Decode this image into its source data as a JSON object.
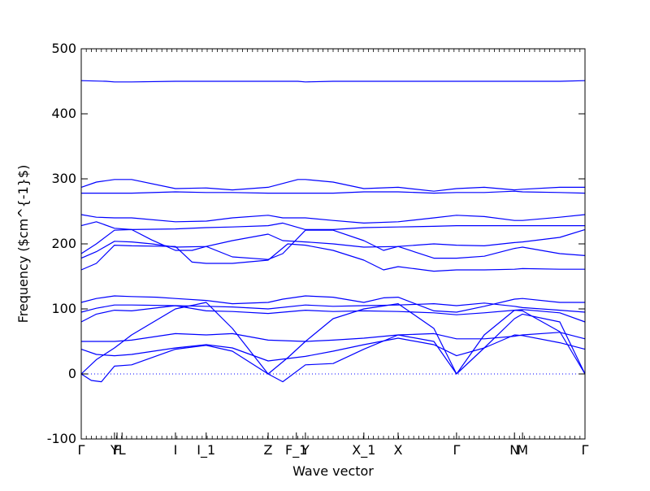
{
  "chart_data": {
    "type": "line",
    "title": "",
    "xlabel": "Wave vector",
    "ylabel": "Frequency ($cm^{-1}$)",
    "ylim": [
      -100,
      500
    ],
    "yticks": [
      -100,
      0,
      100,
      200,
      300,
      400,
      500
    ],
    "xlim": [
      0,
      1
    ],
    "grid": false,
    "legend": "none",
    "series_color": "#0000ff",
    "zero_line_color": "#0000ff",
    "high_symmetry_points": [
      {
        "label": "Γ",
        "x": 0.0
      },
      {
        "label": "Y",
        "x": 0.066
      },
      {
        "label": "F",
        "x": 0.071
      },
      {
        "label": "L",
        "x": 0.081
      },
      {
        "label": "I",
        "x": 0.187
      },
      {
        "label": "I_1",
        "x": 0.248
      },
      {
        "label": "Z",
        "x": 0.371
      },
      {
        "label": "F_1",
        "x": 0.427
      },
      {
        "label": "Y",
        "x": 0.445
      },
      {
        "label": "X_1",
        "x": 0.561
      },
      {
        "label": "X",
        "x": 0.629
      },
      {
        "label": "Γ",
        "x": 0.745
      },
      {
        "label": "N",
        "x": 0.86
      },
      {
        "label": "M",
        "x": 0.876
      },
      {
        "label": "Γ",
        "x": 1.0
      }
    ],
    "series": [
      {
        "x": [
          0,
          0.05,
          0.066,
          0.1,
          0.187,
          0.248,
          0.3,
          0.371,
          0.43,
          0.445,
          0.5,
          0.561,
          0.629,
          0.7,
          0.745,
          0.8,
          0.86,
          0.876,
          0.95,
          1
        ],
        "values": [
          451,
          450,
          449,
          449,
          450,
          450,
          450,
          450,
          450,
          449,
          450,
          450,
          450,
          450,
          450,
          450,
          450,
          450,
          450,
          451
        ]
      },
      {
        "x": [
          0,
          0.03,
          0.066,
          0.1,
          0.187,
          0.248,
          0.3,
          0.371,
          0.43,
          0.445,
          0.5,
          0.561,
          0.629,
          0.7,
          0.745,
          0.8,
          0.86,
          0.876,
          0.95,
          1
        ],
        "values": [
          287,
          295,
          299,
          299,
          285,
          286,
          283,
          287,
          299,
          299,
          295,
          285,
          287,
          281,
          285,
          287,
          283,
          284,
          287,
          287
        ]
      },
      {
        "x": [
          0,
          0.066,
          0.1,
          0.187,
          0.248,
          0.3,
          0.371,
          0.445,
          0.5,
          0.561,
          0.629,
          0.7,
          0.745,
          0.8,
          0.86,
          0.876,
          0.95,
          1
        ],
        "values": [
          278,
          278,
          278,
          280,
          279,
          279,
          278,
          278,
          278,
          280,
          280,
          278,
          279,
          279,
          281,
          280,
          279,
          278
        ]
      },
      {
        "x": [
          0,
          0.03,
          0.066,
          0.1,
          0.187,
          0.248,
          0.3,
          0.371,
          0.4,
          0.445,
          0.5,
          0.561,
          0.629,
          0.7,
          0.745,
          0.8,
          0.86,
          0.876,
          0.95,
          1
        ],
        "values": [
          245,
          241,
          240,
          240,
          234,
          235,
          240,
          244,
          240,
          240,
          236,
          232,
          234,
          240,
          244,
          242,
          236,
          236,
          241,
          245
        ]
      },
      {
        "x": [
          0,
          0.03,
          0.066,
          0.1,
          0.187,
          0.248,
          0.3,
          0.371,
          0.4,
          0.445,
          0.5,
          0.561,
          0.629,
          0.7,
          0.745,
          0.8,
          0.86,
          0.876,
          0.95,
          1
        ],
        "values": [
          228,
          234,
          224,
          222,
          223,
          225,
          226,
          228,
          232,
          222,
          222,
          225,
          226,
          227,
          228,
          228,
          228,
          228,
          228,
          228
        ]
      },
      {
        "x": [
          0,
          0.03,
          0.066,
          0.1,
          0.14,
          0.187,
          0.22,
          0.248,
          0.3,
          0.371,
          0.4,
          0.445,
          0.5,
          0.561,
          0.6,
          0.629,
          0.7,
          0.745,
          0.8,
          0.86,
          0.876,
          0.95,
          1
        ],
        "values": [
          185,
          200,
          221,
          222,
          206,
          190,
          190,
          196,
          180,
          176,
          185,
          221,
          221,
          205,
          190,
          196,
          178,
          178,
          181,
          193,
          195,
          185,
          182
        ]
      },
      {
        "x": [
          0,
          0.03,
          0.066,
          0.1,
          0.14,
          0.187,
          0.248,
          0.3,
          0.371,
          0.4,
          0.445,
          0.5,
          0.561,
          0.629,
          0.7,
          0.745,
          0.8,
          0.86,
          0.876,
          0.95,
          1
        ],
        "values": [
          178,
          188,
          204,
          203,
          200,
          195,
          196,
          205,
          215,
          205,
          203,
          200,
          195,
          196,
          200,
          198,
          197,
          202,
          203,
          210,
          222
        ]
      },
      {
        "x": [
          0,
          0.03,
          0.066,
          0.1,
          0.187,
          0.22,
          0.248,
          0.3,
          0.371,
          0.41,
          0.445,
          0.5,
          0.561,
          0.6,
          0.629,
          0.7,
          0.745,
          0.8,
          0.86,
          0.876,
          0.95,
          1
        ],
        "values": [
          160,
          170,
          198,
          197,
          196,
          172,
          170,
          170,
          175,
          200,
          198,
          190,
          175,
          160,
          165,
          158,
          160,
          160,
          161,
          162,
          161,
          161
        ]
      },
      {
        "x": [
          0,
          0.03,
          0.066,
          0.1,
          0.15,
          0.187,
          0.248,
          0.3,
          0.371,
          0.4,
          0.445,
          0.5,
          0.561,
          0.6,
          0.629,
          0.7,
          0.745,
          0.8,
          0.86,
          0.876,
          0.95,
          1
        ],
        "values": [
          110,
          116,
          120,
          119,
          118,
          116,
          113,
          108,
          110,
          115,
          120,
          118,
          110,
          117,
          118,
          97,
          95,
          104,
          115,
          116,
          110,
          110
        ]
      },
      {
        "x": [
          0,
          0.03,
          0.066,
          0.1,
          0.187,
          0.248,
          0.3,
          0.371,
          0.445,
          0.5,
          0.561,
          0.629,
          0.7,
          0.745,
          0.8,
          0.86,
          0.876,
          0.95,
          1
        ],
        "values": [
          95,
          101,
          106,
          106,
          105,
          104,
          103,
          100,
          106,
          104,
          105,
          106,
          108,
          105,
          109,
          104,
          102,
          98,
          95
        ]
      },
      {
        "x": [
          0,
          0.03,
          0.066,
          0.1,
          0.187,
          0.248,
          0.3,
          0.371,
          0.445,
          0.5,
          0.561,
          0.629,
          0.7,
          0.745,
          0.8,
          0.86,
          0.876,
          0.95,
          1
        ],
        "values": [
          80,
          92,
          98,
          97,
          105,
          97,
          96,
          93,
          98,
          96,
          97,
          96,
          94,
          91,
          94,
          98,
          99,
          94,
          80
        ]
      },
      {
        "x": [
          0,
          0.03,
          0.066,
          0.1,
          0.187,
          0.248,
          0.3,
          0.371,
          0.445,
          0.5,
          0.561,
          0.629,
          0.7,
          0.745,
          0.8,
          0.86,
          0.876,
          0.95,
          1
        ],
        "values": [
          50,
          50,
          50,
          52,
          62,
          60,
          62,
          52,
          50,
          52,
          55,
          60,
          62,
          54,
          54,
          58,
          60,
          64,
          54
        ]
      },
      {
        "x": [
          0,
          0.03,
          0.066,
          0.1,
          0.187,
          0.248,
          0.3,
          0.371,
          0.445,
          0.5,
          0.561,
          0.629,
          0.7,
          0.745,
          0.8,
          0.86,
          0.876,
          0.95,
          1
        ],
        "values": [
          38,
          30,
          28,
          30,
          40,
          45,
          40,
          20,
          27,
          35,
          45,
          55,
          45,
          28,
          40,
          60,
          59,
          48,
          38
        ]
      },
      {
        "x": [
          0,
          0.02,
          0.04,
          0.066,
          0.1,
          0.187,
          0.248,
          0.3,
          0.371,
          0.4,
          0.445,
          0.5,
          0.561,
          0.629,
          0.7,
          0.745,
          0.8,
          0.86,
          0.876,
          0.95,
          1
        ],
        "values": [
          0,
          -10,
          -12,
          12,
          14,
          38,
          44,
          35,
          0,
          -12,
          14,
          16,
          38,
          60,
          50,
          0,
          40,
          85,
          92,
          80,
          0
        ]
      },
      {
        "x": [
          0,
          0.03,
          0.066,
          0.1,
          0.187,
          0.248,
          0.3,
          0.371,
          0.41,
          0.445,
          0.5,
          0.561,
          0.629,
          0.7,
          0.745,
          0.8,
          0.86,
          0.876,
          0.95,
          1
        ],
        "values": [
          0,
          22,
          40,
          60,
          100,
          110,
          70,
          0,
          25,
          50,
          85,
          100,
          108,
          70,
          0,
          60,
          98,
          97,
          65,
          0
        ]
      }
    ]
  }
}
